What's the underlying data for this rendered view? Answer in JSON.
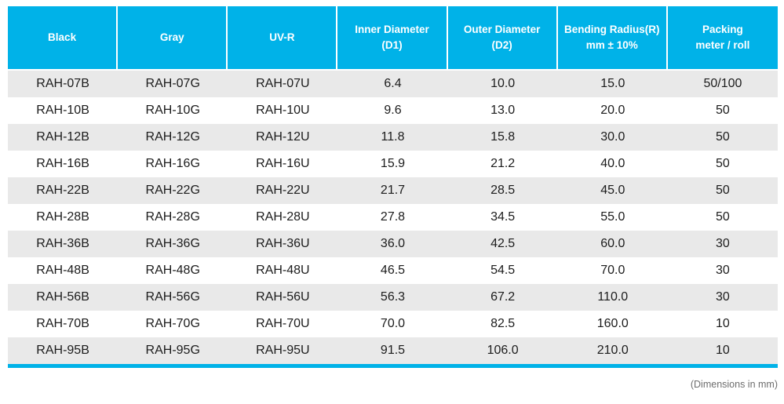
{
  "colors": {
    "header_bg": "#00b2e8",
    "row_stripe": "#e9e9e9",
    "body_text": "#1c1c1c",
    "note_text": "#6d6d6d",
    "bottom_rule": "#00b2e8"
  },
  "note": "(Dimensions in mm)",
  "table": {
    "columns": [
      {
        "line1": "Black",
        "line2": ""
      },
      {
        "line1": "Gray",
        "line2": ""
      },
      {
        "line1": "UV-R",
        "line2": ""
      },
      {
        "line1": "Inner Diameter",
        "line2": "(D1)"
      },
      {
        "line1": "Outer Diameter",
        "line2": "(D2)"
      },
      {
        "line1": "Bending Radius(R)",
        "line2": "mm ± 10%"
      },
      {
        "line1": "Packing",
        "line2": "meter / roll"
      }
    ],
    "rows": [
      [
        "RAH-07B",
        "RAH-07G",
        "RAH-07U",
        "6.4",
        "10.0",
        "15.0",
        "50/100"
      ],
      [
        "RAH-10B",
        "RAH-10G",
        "RAH-10U",
        "9.6",
        "13.0",
        "20.0",
        "50"
      ],
      [
        "RAH-12B",
        "RAH-12G",
        "RAH-12U",
        "11.8",
        "15.8",
        "30.0",
        "50"
      ],
      [
        "RAH-16B",
        "RAH-16G",
        "RAH-16U",
        "15.9",
        "21.2",
        "40.0",
        "50"
      ],
      [
        "RAH-22B",
        "RAH-22G",
        "RAH-22U",
        "21.7",
        "28.5",
        "45.0",
        "50"
      ],
      [
        "RAH-28B",
        "RAH-28G",
        "RAH-28U",
        "27.8",
        "34.5",
        "55.0",
        "50"
      ],
      [
        "RAH-36B",
        "RAH-36G",
        "RAH-36U",
        "36.0",
        "42.5",
        "60.0",
        "30"
      ],
      [
        "RAH-48B",
        "RAH-48G",
        "RAH-48U",
        "46.5",
        "54.5",
        "70.0",
        "30"
      ],
      [
        "RAH-56B",
        "RAH-56G",
        "RAH-56U",
        "56.3",
        "67.2",
        "110.0",
        "30"
      ],
      [
        "RAH-70B",
        "RAH-70G",
        "RAH-70U",
        "70.0",
        "82.5",
        "160.0",
        "10"
      ],
      [
        "RAH-95B",
        "RAH-95G",
        "RAH-95U",
        "91.5",
        "106.0",
        "210.0",
        "10"
      ]
    ]
  },
  "chart_data": {
    "type": "table",
    "title": "",
    "columns": [
      "Black",
      "Gray",
      "UV-R",
      "Inner Diameter (D1)",
      "Outer Diameter (D2)",
      "Bending Radius(R) mm ± 10%",
      "Packing meter / roll"
    ],
    "rows": [
      [
        "RAH-07B",
        "RAH-07G",
        "RAH-07U",
        6.4,
        10.0,
        15.0,
        "50/100"
      ],
      [
        "RAH-10B",
        "RAH-10G",
        "RAH-10U",
        9.6,
        13.0,
        20.0,
        "50"
      ],
      [
        "RAH-12B",
        "RAH-12G",
        "RAH-12U",
        11.8,
        15.8,
        30.0,
        "50"
      ],
      [
        "RAH-16B",
        "RAH-16G",
        "RAH-16U",
        15.9,
        21.2,
        40.0,
        "50"
      ],
      [
        "RAH-22B",
        "RAH-22G",
        "RAH-22U",
        21.7,
        28.5,
        45.0,
        "50"
      ],
      [
        "RAH-28B",
        "RAH-28G",
        "RAH-28U",
        27.8,
        34.5,
        55.0,
        "50"
      ],
      [
        "RAH-36B",
        "RAH-36G",
        "RAH-36U",
        36.0,
        42.5,
        60.0,
        "30"
      ],
      [
        "RAH-48B",
        "RAH-48G",
        "RAH-48U",
        46.5,
        54.5,
        70.0,
        "30"
      ],
      [
        "RAH-56B",
        "RAH-56G",
        "RAH-56U",
        56.3,
        67.2,
        110.0,
        "30"
      ],
      [
        "RAH-70B",
        "RAH-70G",
        "RAH-70U",
        70.0,
        82.5,
        160.0,
        "10"
      ],
      [
        "RAH-95B",
        "RAH-95G",
        "RAH-95U",
        91.5,
        106.0,
        210.0,
        "10"
      ]
    ],
    "footnote": "(Dimensions in mm)"
  }
}
